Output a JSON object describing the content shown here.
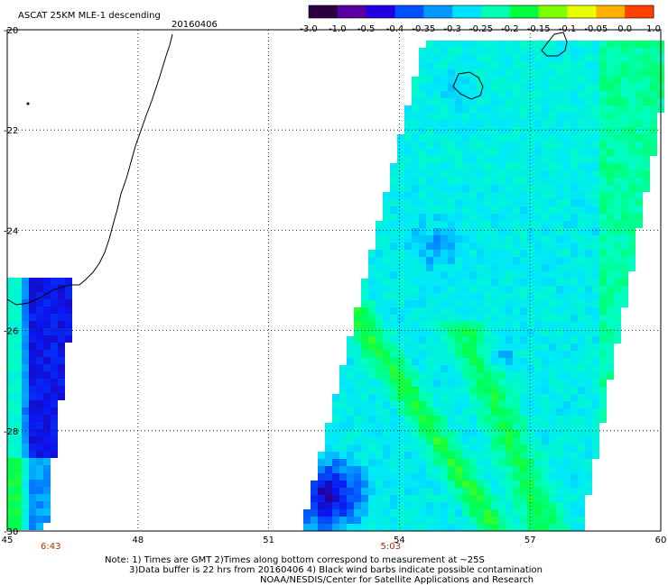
{
  "header": {
    "title": "ASCAT 25KM MLE-1 descending",
    "date": "20160406"
  },
  "colorbar": {
    "ticks": [
      "-3.0",
      "-1.0",
      "-0.5",
      "-0.4",
      "-0.35",
      "-0.3",
      "-0.25",
      "-0.2",
      "-0.15",
      "-0.1",
      "-0.05",
      "0.0",
      "1.0"
    ],
    "colors": [
      "#2a0040",
      "#5a00a0",
      "#2000e0",
      "#0050ff",
      "#0098ff",
      "#00e0ff",
      "#00ffb0",
      "#00ff40",
      "#80ff00",
      "#e8ff00",
      "#ffb000",
      "#ff4000"
    ]
  },
  "axes": {
    "lon_labels": [
      "45",
      "48",
      "51",
      "54",
      "57",
      "60"
    ],
    "lat_labels": [
      "-20",
      "-22",
      "-24",
      "-26",
      "-28",
      "-30"
    ]
  },
  "pass_times": [
    {
      "lon": 46,
      "text": "6:43"
    },
    {
      "lon": 53.8,
      "text": "5:03"
    }
  ],
  "notes": {
    "line1": "Note: 1) Times are GMT 2)Times along bottom correspond to measurement at ~25S",
    "line2": "3)Data buffer is 22 hrs from 20160406 4) Black wind barbs indicate possible contamination",
    "line3": "NOAA/NESDIS/Center for Satellite Applications and Research"
  }
}
